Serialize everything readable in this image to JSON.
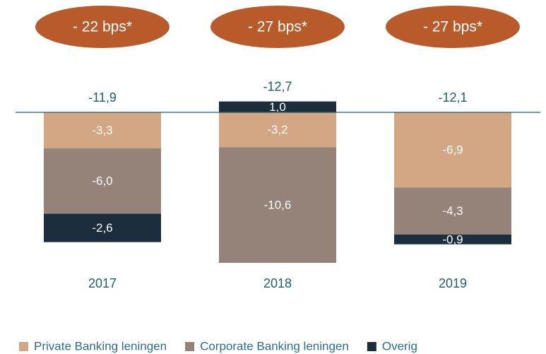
{
  "chart_data": {
    "type": "stacked_bar",
    "categories": [
      "2017",
      "2018",
      "2019"
    ],
    "series": [
      {
        "name": "Private Banking leningen",
        "color": "#d4a784",
        "values": [
          -3.3,
          -3.2,
          -6.9
        ],
        "value_labels": [
          "-3,3",
          "-3,2",
          "-6,9"
        ]
      },
      {
        "name": "Corporate Banking leningen",
        "color": "#958379",
        "values": [
          -6.0,
          -10.6,
          -4.3
        ],
        "value_labels": [
          "-6,0",
          "-10,6",
          "-4,3"
        ]
      },
      {
        "name": "Overig",
        "color": "#1c2e3e",
        "values": [
          -2.6,
          1.0,
          -0.9
        ],
        "value_labels": [
          "-2,6",
          "1,0",
          "-0,9"
        ]
      }
    ],
    "totals": [
      -11.9,
      -12.7,
      -12.1
    ],
    "total_labels": [
      "-11,9",
      "-12,7",
      "-12,1"
    ],
    "annotations": [
      "- 22 bps*",
      "- 27 bps*",
      "- 27 bps*"
    ],
    "annotation_color": "#b85a2a",
    "zero_line_color": "#1f5f6b"
  }
}
